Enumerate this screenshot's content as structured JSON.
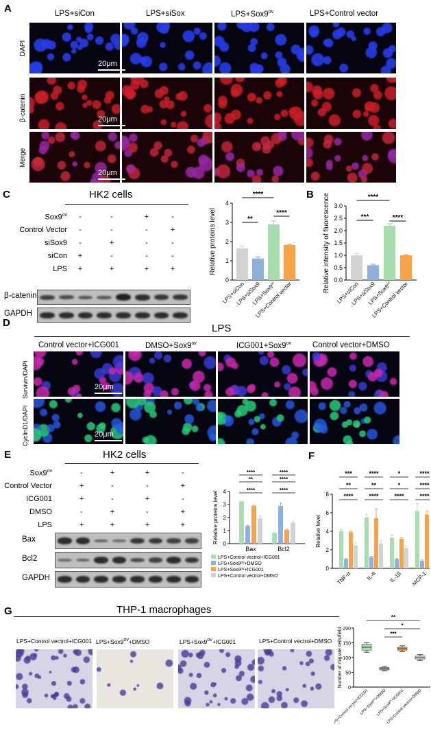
{
  "panelA": {
    "letter": "A",
    "columns": [
      "LPS+siCon",
      "LPS+siSox",
      "LPS+Sox9ov",
      "LPS+Control vector"
    ],
    "col_parts": [
      [
        "LPS+siCon",
        ""
      ],
      [
        "LPS+siSox",
        ""
      ],
      [
        "LPS+Sox9",
        "ov"
      ],
      [
        "LPS+Control vector",
        ""
      ]
    ],
    "rows": [
      "DAPI",
      "β-catenin",
      "Merge"
    ],
    "scalebar": "20μm"
  },
  "panelC": {
    "letter": "C",
    "title": "HK2 cells",
    "conditions": [
      {
        "label": "Sox9",
        "sup": "ov",
        "marks": [
          "-",
          "-",
          "+",
          "-"
        ]
      },
      {
        "label": "Control Vector",
        "sup": "",
        "marks": [
          "-",
          "-",
          "-",
          "+"
        ]
      },
      {
        "label": "siSox9",
        "sup": "",
        "marks": [
          "-",
          "+",
          "-",
          "-"
        ]
      },
      {
        "label": "siCon",
        "sup": "",
        "marks": [
          "+",
          "-",
          "-",
          "-"
        ]
      },
      {
        "label": "LPS",
        "sup": "",
        "marks": [
          "+",
          "+",
          "+",
          "+"
        ]
      }
    ],
    "blots": [
      "β-catenin",
      "GAPDH"
    ]
  },
  "panelB": {
    "letter": "B"
  },
  "panelD": {
    "letter": "D",
    "title": "LPS",
    "col_parts": [
      [
        "Control vector+ICG001",
        ""
      ],
      [
        "DMSO+Sox9",
        "ov"
      ],
      [
        "ICG001+Sox9",
        "ov"
      ],
      [
        "Control vector+DMSO",
        ""
      ]
    ],
    "rows": [
      "Survivin/DAPI",
      "CyclinD1/DAPI"
    ],
    "scalebar": "20μm"
  },
  "panelE": {
    "letter": "E",
    "title": "HK2 cells",
    "conditions": [
      {
        "label": "Sox9",
        "sup": "ov",
        "marks": [
          "-",
          "+",
          "+",
          "-"
        ]
      },
      {
        "label": "Control Vector",
        "sup": "",
        "marks": [
          "+",
          "-",
          "-",
          "+"
        ]
      },
      {
        "label": "ICG001",
        "sup": "",
        "marks": [
          "+",
          "-",
          "+",
          "-"
        ]
      },
      {
        "label": "DMSO",
        "sup": "",
        "marks": [
          "-",
          "+",
          "-",
          "+"
        ]
      },
      {
        "label": "LPS",
        "sup": "",
        "marks": [
          "+",
          "+",
          "+",
          "+"
        ]
      }
    ],
    "blots": [
      "Bax",
      "Bcl2",
      "GAPDH"
    ]
  },
  "panelF": {
    "letter": "F"
  },
  "panelG": {
    "letter": "G",
    "title": "THP-1 macrophages",
    "col_parts": [
      [
        "LPS+Control vectrol+ICG001",
        ""
      ],
      [
        "LPS+Sox9",
        "ov",
        "+DMSO"
      ],
      [
        "LPS+Sox9",
        "ov",
        "+ICG001"
      ],
      [
        "LPS+Control vectrol+DMSO",
        ""
      ]
    ]
  },
  "chart_data": [
    {
      "id": "C-bar",
      "type": "bar",
      "categories": [
        "LPS+siCon",
        "LPS+siSox9",
        "LPS+Sox9ov",
        "LPS+Control vector"
      ],
      "values": [
        1.65,
        1.12,
        2.9,
        1.82
      ],
      "errors": [
        0.12,
        0.08,
        0.18,
        0.05
      ],
      "colors": [
        "#d3d3d3",
        "#8fb0d8",
        "#a8ddb0",
        "#f5a24b"
      ],
      "ylabel": "Relative proteins level",
      "ylim": [
        0,
        4
      ],
      "yticks": [
        "0",
        "1",
        "2",
        "3",
        "4"
      ],
      "significance": [
        {
          "from": 0,
          "to": 1,
          "label": "**"
        },
        {
          "from": 0,
          "to": 2,
          "label": "****"
        },
        {
          "from": 2,
          "to": 3,
          "label": "****"
        }
      ]
    },
    {
      "id": "B-bar",
      "type": "bar",
      "categories": [
        "LPS+siCon",
        "LPS+siSox9",
        "LPS+Sox9ov",
        "LPS+Control vector"
      ],
      "values": [
        1.0,
        0.6,
        2.2,
        1.0
      ],
      "errors": [
        0.08,
        0.04,
        0.08,
        0.02
      ],
      "colors": [
        "#d3d3d3",
        "#8fb0d8",
        "#a8ddb0",
        "#f5a24b"
      ],
      "ylabel": "Relative intensity of fluorescence",
      "ylim": [
        0,
        3
      ],
      "yticks": [
        "0.0",
        "0.5",
        "1.0",
        "1.5",
        "2.0",
        "2.5",
        "3.0"
      ],
      "significance": [
        {
          "from": 0,
          "to": 1,
          "label": "***"
        },
        {
          "from": 0,
          "to": 2,
          "label": "****"
        },
        {
          "from": 2,
          "to": 3,
          "label": "****"
        }
      ]
    },
    {
      "id": "E-bar",
      "type": "bar",
      "categories": [
        "Bax",
        "Bcl2"
      ],
      "series": [
        {
          "name": "LPS+Control vectrol+ICG001",
          "color": "#a8ddb0",
          "values": [
            3.25,
            0.8
          ],
          "errors": [
            0,
            0.05
          ]
        },
        {
          "name": "LPS+Sox9ov+DMSO",
          "color": "#8fb0d8",
          "values": [
            1.35,
            2.9
          ],
          "errors": [
            0.05,
            0.2
          ]
        },
        {
          "name": "LPS+Sox9ov+ICG001",
          "color": "#f5a24b",
          "values": [
            2.9,
            1.05
          ],
          "errors": [
            0.05,
            0.05
          ]
        },
        {
          "name": "LPS+Control vectrol+DMSO",
          "color": "#d3d3d3",
          "values": [
            1.95,
            1.6
          ],
          "errors": [
            0.15,
            0.12
          ]
        }
      ],
      "ylabel": "Relative proteins level",
      "ylim": [
        0,
        4
      ],
      "yticks": [
        "0",
        "1",
        "2",
        "3",
        "4"
      ],
      "legend": "bottom",
      "significance": [
        {
          "group": 0,
          "label": "****"
        },
        {
          "group": 0,
          "label": "**"
        },
        {
          "group": 0,
          "label": "****"
        },
        {
          "group": 1,
          "label": "****"
        },
        {
          "group": 1,
          "label": "****"
        },
        {
          "group": 1,
          "label": "****"
        }
      ]
    },
    {
      "id": "F-bar",
      "type": "bar",
      "categories": [
        "TNF-α",
        "IL-6",
        "IL-1β",
        "MCP-1"
      ],
      "series": [
        {
          "color": "#a8ddb0",
          "values": [
            4.0,
            5.5,
            3.3,
            6.2
          ],
          "errors": [
            0.2,
            0.3,
            0.3,
            0.8
          ]
        },
        {
          "color": "#8fb0d8",
          "values": [
            1.0,
            1.2,
            1.0,
            0.8
          ],
          "errors": [
            0.05,
            0.1,
            0.05,
            0.1
          ]
        },
        {
          "color": "#f5a24b",
          "values": [
            3.9,
            5.4,
            3.2,
            5.8
          ],
          "errors": [
            0.1,
            1.0,
            0.1,
            0.4
          ]
        },
        {
          "color": "#d3d3d3",
          "values": [
            2.5,
            2.7,
            2.2,
            3.9
          ],
          "errors": [
            0.3,
            0.3,
            0.2,
            0.1
          ]
        }
      ],
      "ylabel": "Relative  level",
      "ylim": [
        0,
        8
      ],
      "yticks": [
        "0",
        "2",
        "4",
        "6",
        "8"
      ],
      "significance": [
        {
          "group": 0,
          "labels": [
            "***",
            "**",
            "****"
          ]
        },
        {
          "group": 1,
          "labels": [
            "****",
            "**",
            "****"
          ]
        },
        {
          "group": 2,
          "labels": [
            "*",
            "*",
            "****"
          ]
        },
        {
          "group": 3,
          "labels": [
            "****",
            "****",
            "****"
          ]
        }
      ]
    },
    {
      "id": "G-box",
      "type": "box",
      "categories": [
        "LPS+Control vectrol+ICG001",
        "LPS+Sox9ov+DMSO",
        "LPS+Sox9ov+ICG001",
        "LPS+Control vectrol+DMSO"
      ],
      "boxes": [
        {
          "min": 118,
          "q1": 125,
          "median": 135,
          "q3": 145,
          "max": 150,
          "color": "#a8ddb0"
        },
        {
          "min": 55,
          "q1": 58,
          "median": 62,
          "q3": 66,
          "max": 70,
          "color": "#8fb0d8"
        },
        {
          "min": 120,
          "q1": 125,
          "median": 130,
          "q3": 135,
          "max": 140,
          "color": "#f5a24b"
        },
        {
          "min": 90,
          "q1": 95,
          "median": 100,
          "q3": 105,
          "max": 110,
          "color": "#d3d3d3"
        }
      ],
      "ylabel": "Number of migrate cells/field",
      "ylim": [
        0,
        200
      ],
      "yticks": [
        "0",
        "50",
        "100",
        "150",
        "200"
      ],
      "significance": [
        {
          "from": 0,
          "to": 3,
          "label": "**"
        },
        {
          "from": 1,
          "to": 3,
          "label": "*"
        },
        {
          "from": 1,
          "to": 2,
          "label": "***"
        }
      ]
    }
  ]
}
